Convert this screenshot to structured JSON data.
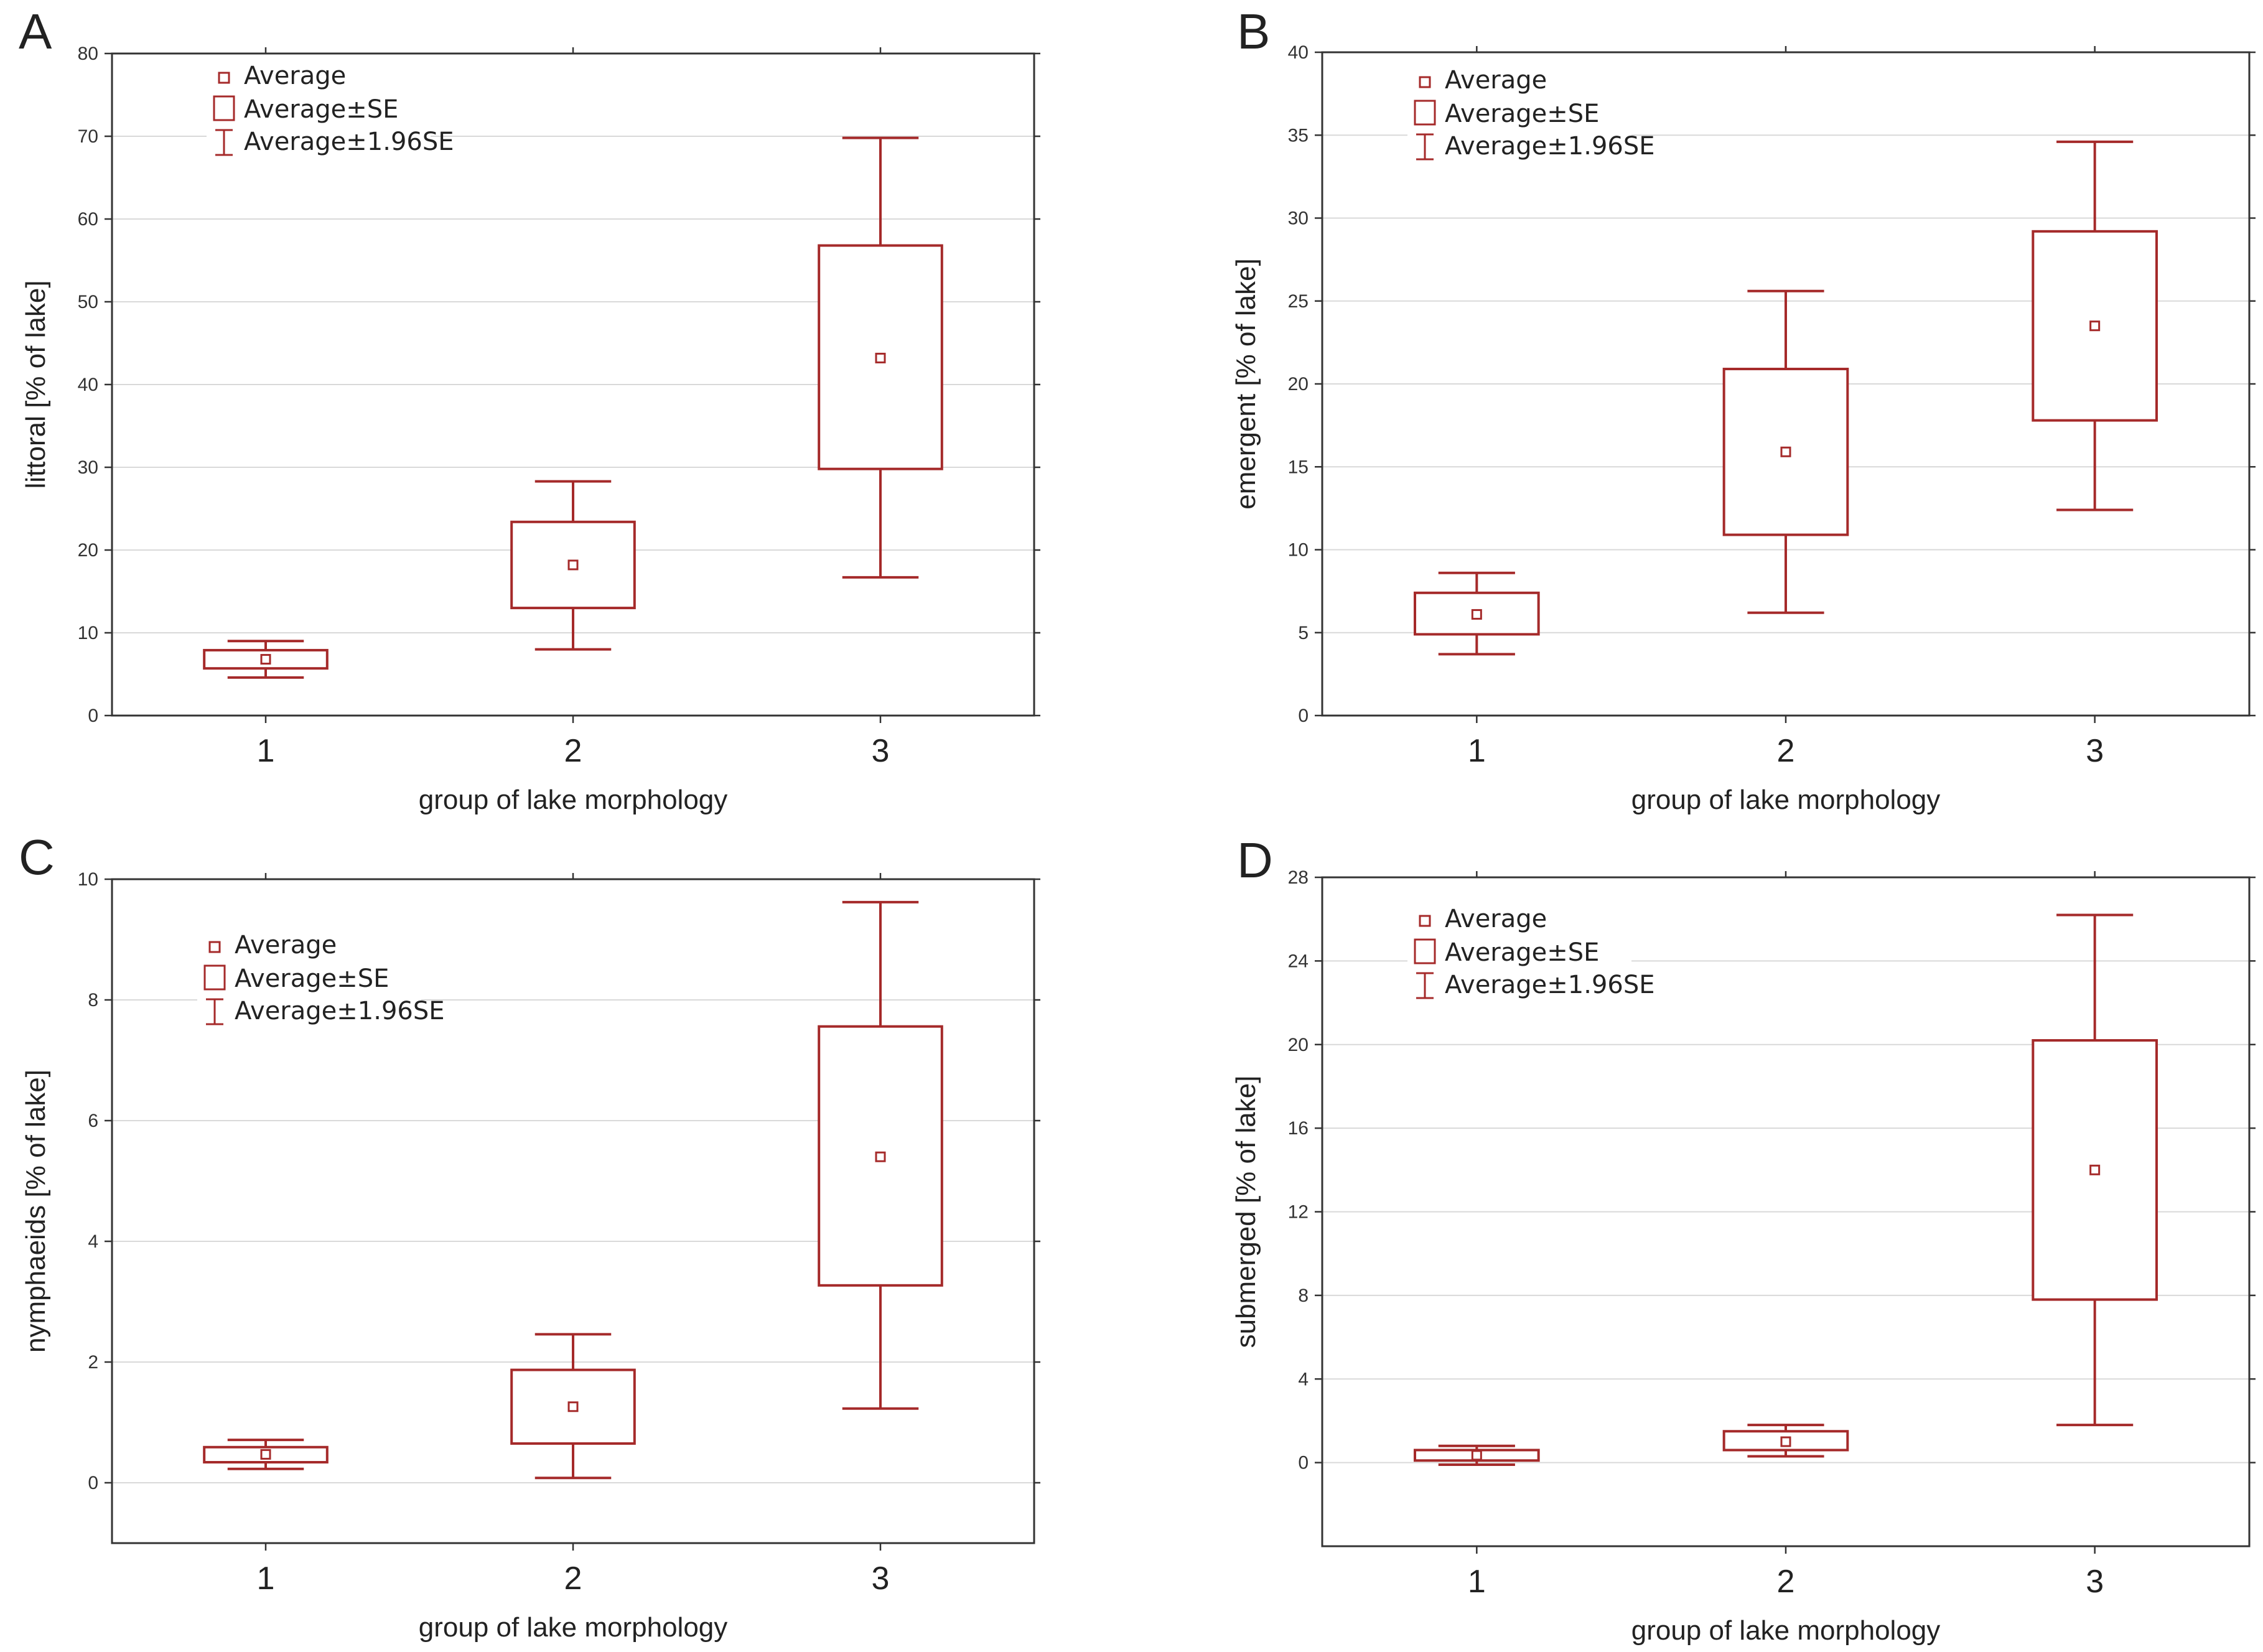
{
  "colors": {
    "series": "#a52a2a",
    "grid": "#d9d9d9",
    "axis": "#333333"
  },
  "legend": {
    "average": "Average",
    "average_se": "Average±SE",
    "average_196se": "Average±1.96SE"
  },
  "chart_data": [
    {
      "type": "box",
      "panel": "A",
      "title": "",
      "xlabel": "group of lake morphology",
      "ylabel": "littoral [% of lake]",
      "categories": [
        "1",
        "2",
        "3"
      ],
      "ylim": [
        0,
        80
      ],
      "yticks": [
        "0",
        "10",
        "20",
        "30",
        "40",
        "50",
        "60",
        "70",
        "80"
      ],
      "series": [
        {
          "name": "Average",
          "values": [
            6.8,
            18.2,
            43.2
          ]
        },
        {
          "name": "Average±SE",
          "low": [
            5.7,
            13.0,
            29.8
          ],
          "high": [
            7.9,
            23.4,
            56.8
          ]
        },
        {
          "name": "Average±1.96SE",
          "low": [
            4.6,
            8.0,
            16.7
          ],
          "high": [
            9.0,
            28.3,
            69.8
          ]
        }
      ],
      "grid": true,
      "legend_position": "top-left"
    },
    {
      "type": "box",
      "panel": "B",
      "title": "",
      "xlabel": "group of lake morphology",
      "ylabel": "emergent [% of lake]",
      "categories": [
        "1",
        "2",
        "3"
      ],
      "ylim": [
        0,
        40
      ],
      "yticks": [
        "0",
        "5",
        "10",
        "15",
        "20",
        "25",
        "30",
        "35",
        "40"
      ],
      "series": [
        {
          "name": "Average",
          "values": [
            6.1,
            15.9,
            23.5
          ]
        },
        {
          "name": "Average±SE",
          "low": [
            4.9,
            10.9,
            17.8
          ],
          "high": [
            7.4,
            20.9,
            29.2
          ]
        },
        {
          "name": "Average±1.96SE",
          "low": [
            3.7,
            6.2,
            12.4
          ],
          "high": [
            8.6,
            25.6,
            34.6
          ]
        }
      ],
      "grid": true,
      "legend_position": "top-left"
    },
    {
      "type": "box",
      "panel": "C",
      "title": "",
      "xlabel": "group of lake morphology",
      "ylabel": "nymphaeids [% of lake]",
      "categories": [
        "1",
        "2",
        "3"
      ],
      "ylim": [
        -1,
        10
      ],
      "yticks": [
        "0",
        "2",
        "4",
        "6",
        "8",
        "10"
      ],
      "series": [
        {
          "name": "Average",
          "values": [
            0.47,
            1.26,
            5.4
          ]
        },
        {
          "name": "Average±SE",
          "low": [
            0.34,
            0.65,
            3.27
          ],
          "high": [
            0.59,
            1.87,
            7.56
          ]
        },
        {
          "name": "Average±1.96SE",
          "low": [
            0.23,
            0.08,
            1.23
          ],
          "high": [
            0.71,
            2.46,
            9.62
          ]
        }
      ],
      "grid": true,
      "legend_position": "top-left"
    },
    {
      "type": "box",
      "panel": "D",
      "title": "",
      "xlabel": "group of lake morphology",
      "ylabel": "submerged [% of lake]",
      "categories": [
        "1",
        "2",
        "3"
      ],
      "ylim": [
        -4,
        28
      ],
      "yticks": [
        "0",
        "4",
        "8",
        "12",
        "16",
        "20",
        "24",
        "28"
      ],
      "series": [
        {
          "name": "Average",
          "values": [
            0.35,
            1.0,
            14.0
          ]
        },
        {
          "name": "Average±SE",
          "low": [
            0.1,
            0.6,
            7.8
          ],
          "high": [
            0.6,
            1.5,
            20.2
          ]
        },
        {
          "name": "Average±1.96SE",
          "low": [
            -0.1,
            0.3,
            1.8
          ],
          "high": [
            0.8,
            1.8,
            26.2
          ]
        }
      ],
      "grid": true,
      "legend_position": "top-left"
    }
  ]
}
